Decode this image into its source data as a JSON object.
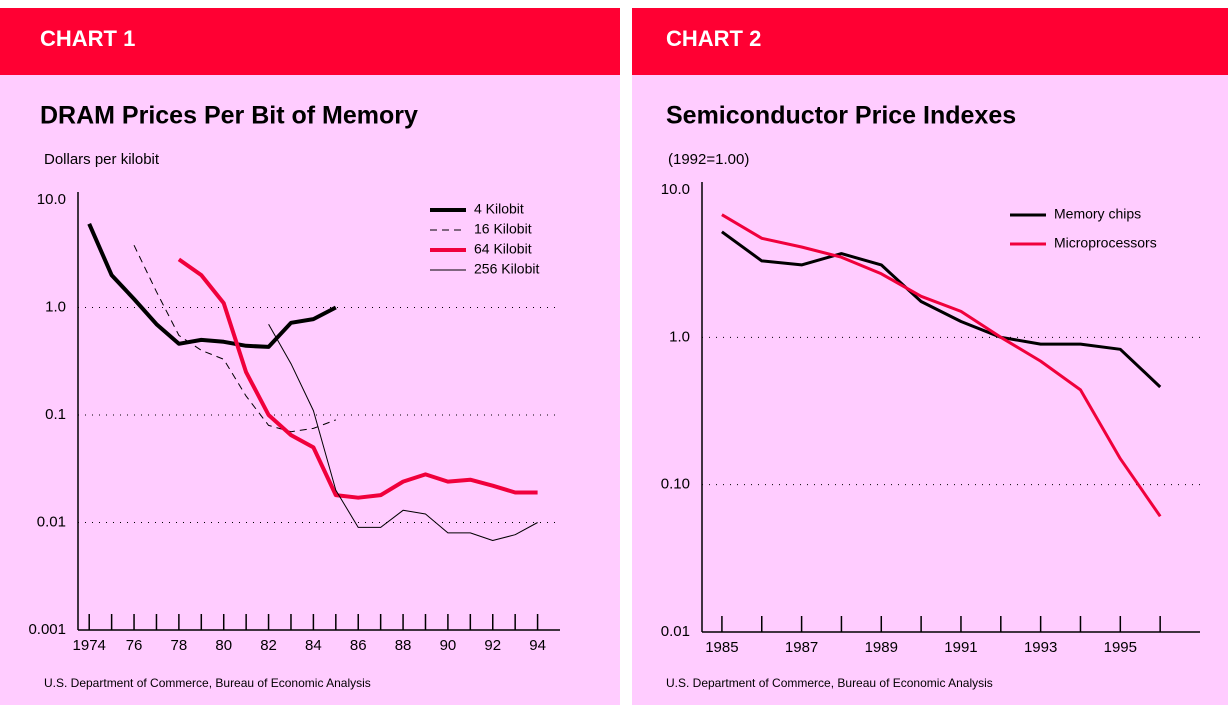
{
  "chart_data": [
    {
      "type": "line",
      "header": "CHART 1",
      "title": "DRAM Prices Per Bit of Memory",
      "y_label": "Dollars per kilobit",
      "source": "U.S. Department of Commerce, Bureau of Economic Analysis",
      "x": [
        1974,
        1975,
        1976,
        1977,
        1978,
        1979,
        1980,
        1981,
        1982,
        1983,
        1984,
        1985,
        1986,
        1987,
        1988,
        1989,
        1990,
        1991,
        1992,
        1993,
        1994
      ],
      "series": [
        {
          "name": "4 Kilobit",
          "color": "#000000",
          "width": 4,
          "dash": "solid",
          "values": [
            6.0,
            2.0,
            1.2,
            0.7,
            0.46,
            0.5,
            0.48,
            0.44,
            0.43,
            0.72,
            0.78,
            1.0,
            null,
            null,
            null,
            null,
            null,
            null,
            null,
            null,
            null
          ]
        },
        {
          "name": "16 Kilobit",
          "color": "#000000",
          "width": 1,
          "dash": "dashed",
          "values": [
            null,
            null,
            3.8,
            1.4,
            0.55,
            0.4,
            0.33,
            0.15,
            0.08,
            0.07,
            0.075,
            0.09,
            null,
            null,
            null,
            null,
            null,
            null,
            null,
            null,
            null
          ]
        },
        {
          "name": "64 Kilobit",
          "color": "#f0003c",
          "width": 4,
          "dash": "solid",
          "values": [
            null,
            null,
            null,
            null,
            2.8,
            2.0,
            1.1,
            0.25,
            0.1,
            0.065,
            0.05,
            0.018,
            0.017,
            0.018,
            0.024,
            0.028,
            0.024,
            0.025,
            0.022,
            0.019,
            0.019
          ]
        },
        {
          "name": "256 Kilobit",
          "color": "#000000",
          "width": 1,
          "dash": "solid",
          "values": [
            null,
            null,
            null,
            null,
            null,
            null,
            null,
            null,
            0.7,
            0.3,
            0.11,
            0.02,
            0.009,
            0.009,
            0.013,
            0.012,
            0.008,
            0.008,
            0.0068,
            0.0077,
            0.01
          ]
        }
      ],
      "log_scale": true,
      "grid": true,
      "legend": "upper right",
      "xlim": [
        1973.5,
        1995
      ],
      "ylim": [
        0.001,
        10
      ],
      "xticks": [
        1974,
        {
          "value": 1976,
          "label": "76"
        },
        {
          "value": 1978,
          "label": "78"
        },
        {
          "value": 1980,
          "label": "80"
        },
        {
          "value": 1982,
          "label": "82"
        },
        {
          "value": 1984,
          "label": "84"
        },
        {
          "value": 1986,
          "label": "86"
        },
        {
          "value": 1988,
          "label": "88"
        },
        {
          "value": 1990,
          "label": "90"
        },
        {
          "value": 1992,
          "label": "92"
        },
        {
          "value": 1994,
          "label": "94"
        }
      ],
      "xminorticks": [
        1975,
        1977,
        1979,
        1981,
        1983,
        1985,
        1987,
        1989,
        1991,
        1993
      ],
      "yticks": [
        0.001,
        0.01,
        0.1,
        {
          "value": 1,
          "label": "1.0"
        },
        {
          "value": 10,
          "label": "10.0"
        }
      ]
    },
    {
      "type": "line",
      "header": "CHART 2",
      "title": "Semiconductor Price Indexes",
      "y_label": "(1992=1.00)",
      "source": "U.S. Department of Commerce, Bureau of Economic Analysis",
      "x": [
        1985,
        1986,
        1987,
        1988,
        1989,
        1990,
        1991,
        1992,
        1993,
        1994,
        1995,
        1996
      ],
      "series": [
        {
          "name": "Memory chips",
          "color": "#000000",
          "width": 3,
          "dash": "solid",
          "values": [
            5.2,
            3.3,
            3.1,
            3.7,
            3.1,
            1.75,
            1.28,
            1.0,
            0.9,
            0.9,
            0.83,
            0.46
          ]
        },
        {
          "name": "Microprocessors",
          "color": "#f0003c",
          "width": 3,
          "dash": "solid",
          "values": [
            6.8,
            4.7,
            4.1,
            3.5,
            2.7,
            1.9,
            1.5,
            1.0,
            0.69,
            0.44,
            0.15,
            0.061
          ]
        }
      ],
      "log_scale": true,
      "grid": true,
      "legend": "upper right",
      "xlim": [
        1984.5,
        1997
      ],
      "ylim": [
        0.01,
        10
      ],
      "xticks": [
        1985,
        1987,
        1989,
        1991,
        1993,
        1995
      ],
      "xminorticks": [
        1986,
        1988,
        1990,
        1992,
        1994,
        1996
      ],
      "yticks": [
        0.01,
        {
          "value": 0.1,
          "label": "0.10"
        },
        {
          "value": 1,
          "label": "1.0"
        },
        {
          "value": 10,
          "label": "10.0"
        }
      ]
    }
  ]
}
